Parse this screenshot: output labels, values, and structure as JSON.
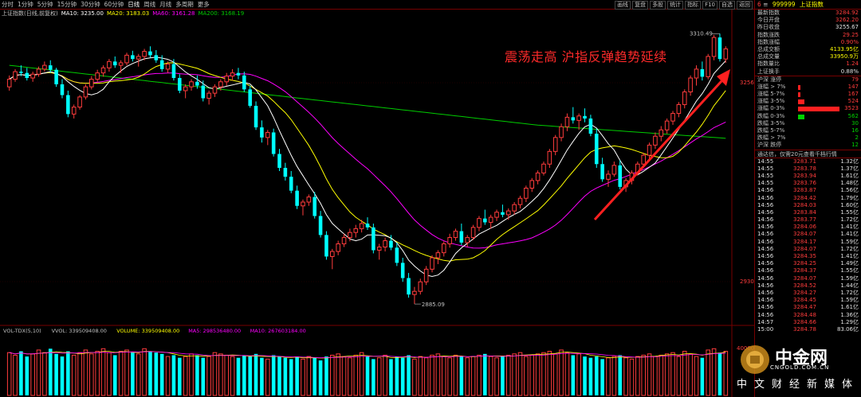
{
  "top": {
    "periods": [
      "分时",
      "1分钟",
      "5分钟",
      "15分钟",
      "30分钟",
      "60分钟",
      "日线",
      "周线",
      "月线",
      "多周期",
      "更多"
    ],
    "active": "日线",
    "tools": [
      "画线",
      "复盘",
      "多股",
      "统计",
      "指标",
      "F10",
      "自选",
      "返回"
    ]
  },
  "legend": {
    "name": "上证指数(日线,前复权)",
    "ma10": "MA10: 3235.00",
    "ma20": "MA20: 3183.03",
    "ma60": "MA60: 3161.28",
    "ma200": "MA200: 3168.19"
  },
  "colors": {
    "up": "#ff3c3c",
    "down": "#00ffff",
    "ma10": "#ffffff",
    "ma20": "#ffff00",
    "ma60": "#ff00ff",
    "ma200": "#00cc00",
    "frame": "#770000"
  },
  "headline": "震荡走高 沪指反弹趋势延续",
  "annotations": {
    "high_label": "3310.49",
    "low_label": "2885.09",
    "axis_upper": "3256",
    "axis_lower": "2930"
  },
  "chart_data": {
    "type": "candlestick",
    "price_ylim": [
      2860,
      3330
    ],
    "ohlc": [
      [
        3228,
        3246,
        3222,
        3240
      ],
      [
        3240,
        3256,
        3236,
        3252
      ],
      [
        3252,
        3262,
        3245,
        3250
      ],
      [
        3250,
        3258,
        3238,
        3242
      ],
      [
        3242,
        3252,
        3236,
        3248
      ],
      [
        3248,
        3260,
        3244,
        3256
      ],
      [
        3256,
        3268,
        3252,
        3262
      ],
      [
        3262,
        3270,
        3250,
        3255
      ],
      [
        3255,
        3258,
        3228,
        3232
      ],
      [
        3232,
        3240,
        3210,
        3215
      ],
      [
        3215,
        3222,
        3180,
        3185
      ],
      [
        3185,
        3200,
        3178,
        3196
      ],
      [
        3196,
        3215,
        3192,
        3212
      ],
      [
        3212,
        3232,
        3208,
        3228
      ],
      [
        3228,
        3245,
        3224,
        3240
      ],
      [
        3240,
        3255,
        3236,
        3250
      ],
      [
        3250,
        3262,
        3244,
        3258
      ],
      [
        3258,
        3272,
        3252,
        3268
      ],
      [
        3268,
        3276,
        3258,
        3262
      ],
      [
        3262,
        3270,
        3250,
        3266
      ],
      [
        3266,
        3282,
        3262,
        3278
      ],
      [
        3278,
        3285,
        3268,
        3272
      ],
      [
        3272,
        3280,
        3260,
        3276
      ],
      [
        3276,
        3288,
        3270,
        3284
      ],
      [
        3284,
        3292,
        3274,
        3278
      ],
      [
        3278,
        3286,
        3266,
        3270
      ],
      [
        3270,
        3278,
        3252,
        3256
      ],
      [
        3256,
        3268,
        3250,
        3264
      ],
      [
        3264,
        3272,
        3238,
        3242
      ],
      [
        3242,
        3248,
        3218,
        3222
      ],
      [
        3222,
        3232,
        3210,
        3228
      ],
      [
        3228,
        3240,
        3222,
        3236
      ],
      [
        3236,
        3246,
        3225,
        3230
      ],
      [
        3230,
        3238,
        3205,
        3210
      ],
      [
        3210,
        3222,
        3200,
        3218
      ],
      [
        3218,
        3232,
        3212,
        3228
      ],
      [
        3228,
        3240,
        3222,
        3236
      ],
      [
        3236,
        3250,
        3230,
        3245
      ],
      [
        3245,
        3256,
        3238,
        3250
      ],
      [
        3250,
        3258,
        3240,
        3246
      ],
      [
        3246,
        3252,
        3220,
        3224
      ],
      [
        3224,
        3230,
        3195,
        3198
      ],
      [
        3198,
        3205,
        3160,
        3164
      ],
      [
        3164,
        3175,
        3140,
        3148
      ],
      [
        3148,
        3160,
        3136,
        3156
      ],
      [
        3156,
        3162,
        3118,
        3122
      ],
      [
        3122,
        3130,
        3095,
        3100
      ],
      [
        3100,
        3108,
        3080,
        3086
      ],
      [
        3086,
        3095,
        3060,
        3064
      ],
      [
        3064,
        3072,
        3035,
        3040
      ],
      [
        3040,
        3050,
        3025,
        3046
      ],
      [
        3046,
        3058,
        3040,
        3054
      ],
      [
        3054,
        3062,
        3020,
        3024
      ],
      [
        3024,
        3032,
        2990,
        2994
      ],
      [
        2994,
        3000,
        2955,
        2960
      ],
      [
        2960,
        2972,
        2940,
        2968
      ],
      [
        2968,
        2985,
        2962,
        2980
      ],
      [
        2980,
        2996,
        2975,
        2990
      ],
      [
        2990,
        3004,
        2984,
        2998
      ],
      [
        2998,
        3010,
        2990,
        3004
      ],
      [
        3004,
        3018,
        2998,
        3012
      ],
      [
        3012,
        3022,
        3002,
        3006
      ],
      [
        3006,
        3012,
        2965,
        2970
      ],
      [
        2970,
        2980,
        2955,
        2975
      ],
      [
        2975,
        2990,
        2968,
        2985
      ],
      [
        2985,
        2994,
        2970,
        2974
      ],
      [
        2974,
        2982,
        2945,
        2950
      ],
      [
        2950,
        2958,
        2920,
        2926
      ],
      [
        2926,
        2934,
        2895,
        2900
      ],
      [
        2900,
        2912,
        2885,
        2905
      ],
      [
        2905,
        2925,
        2900,
        2920
      ],
      [
        2920,
        2945,
        2915,
        2940
      ],
      [
        2940,
        2962,
        2935,
        2958
      ],
      [
        2958,
        2970,
        2948,
        2966
      ],
      [
        2966,
        2984,
        2960,
        2980
      ],
      [
        2980,
        2996,
        2974,
        2990
      ],
      [
        2990,
        3004,
        2985,
        3000
      ],
      [
        3000,
        3012,
        2978,
        2982
      ],
      [
        2982,
        2994,
        2975,
        2990
      ],
      [
        2990,
        3010,
        2986,
        3006
      ],
      [
        3006,
        3024,
        3000,
        3020
      ],
      [
        3020,
        3034,
        3010,
        3014
      ],
      [
        3014,
        3026,
        3004,
        3022
      ],
      [
        3022,
        3034,
        3016,
        3030
      ],
      [
        3030,
        3042,
        3022,
        3026
      ],
      [
        3026,
        3036,
        3018,
        3032
      ],
      [
        3032,
        3046,
        3026,
        3042
      ],
      [
        3042,
        3056,
        3036,
        3052
      ],
      [
        3052,
        3072,
        3046,
        3068
      ],
      [
        3068,
        3084,
        3062,
        3080
      ],
      [
        3080,
        3096,
        3074,
        3092
      ],
      [
        3092,
        3110,
        3088,
        3106
      ],
      [
        3106,
        3130,
        3100,
        3126
      ],
      [
        3126,
        3152,
        3120,
        3148
      ],
      [
        3148,
        3170,
        3142,
        3165
      ],
      [
        3165,
        3186,
        3158,
        3180
      ],
      [
        3180,
        3196,
        3170,
        3175
      ],
      [
        3175,
        3186,
        3160,
        3182
      ],
      [
        3182,
        3194,
        3172,
        3178
      ],
      [
        3178,
        3184,
        3150,
        3154
      ],
      [
        3154,
        3162,
        3100,
        3106
      ],
      [
        3106,
        3116,
        3078,
        3082
      ],
      [
        3082,
        3096,
        3070,
        3090
      ],
      [
        3090,
        3110,
        3086,
        3104
      ],
      [
        3104,
        3112,
        3066,
        3070
      ],
      [
        3070,
        3084,
        3062,
        3080
      ],
      [
        3080,
        3096,
        3074,
        3092
      ],
      [
        3092,
        3110,
        3088,
        3106
      ],
      [
        3106,
        3124,
        3100,
        3120
      ],
      [
        3120,
        3140,
        3114,
        3136
      ],
      [
        3136,
        3156,
        3130,
        3150
      ],
      [
        3150,
        3166,
        3142,
        3160
      ],
      [
        3160,
        3178,
        3154,
        3174
      ],
      [
        3174,
        3190,
        3168,
        3186
      ],
      [
        3186,
        3204,
        3180,
        3200
      ],
      [
        3200,
        3224,
        3194,
        3220
      ],
      [
        3220,
        3246,
        3214,
        3242
      ],
      [
        3242,
        3262,
        3230,
        3256
      ],
      [
        3256,
        3268,
        3238,
        3244
      ],
      [
        3244,
        3280,
        3240,
        3276
      ],
      [
        3276,
        3310,
        3270,
        3306
      ],
      [
        3306,
        3312,
        3268,
        3272
      ],
      [
        3272,
        3292,
        3266,
        3288
      ]
    ],
    "volume_ylim": [
      0,
      460000000
    ],
    "volume": [
      330,
      310,
      340,
      300,
      320,
      350,
      330,
      360,
      320,
      300,
      340,
      310,
      330,
      350,
      320,
      340,
      360,
      330,
      310,
      340,
      350,
      330,
      320,
      360,
      340,
      330,
      320,
      300,
      310,
      290,
      300,
      320,
      310,
      290,
      300,
      330,
      320,
      310,
      300,
      290,
      310,
      300,
      320,
      290,
      280,
      310,
      300,
      290,
      280,
      300,
      280,
      300,
      290,
      270,
      300,
      310,
      320,
      300,
      290,
      310,
      330,
      300,
      280,
      290,
      310,
      280,
      300,
      290,
      310,
      280,
      300,
      290,
      310,
      320,
      300,
      290,
      310,
      300,
      290,
      300,
      310,
      320,
      300,
      290,
      300,
      310,
      320,
      330,
      300,
      310,
      320,
      330,
      340,
      320,
      350,
      330,
      310,
      320,
      300,
      290,
      300,
      280,
      290,
      300,
      310,
      290,
      280,
      300,
      310,
      320,
      300,
      310,
      320,
      330,
      300,
      340,
      320,
      300,
      290,
      350,
      360,
      330,
      340
    ],
    "vol_legend": {
      "name": "VOL-TDX(5,10)",
      "vvol": "VVOL: 339509408.00",
      "volume": "VOLUME: 339509408.00",
      "ma5": "MA5: 298536480.00",
      "ma10": "MA10: 267603184.00"
    },
    "vol_axis": {
      "upper": "40000",
      "unit": "万万"
    }
  },
  "panel": {
    "num": "6",
    "code": "999999",
    "name": "上证指数",
    "stats": [
      {
        "label": "最新指数",
        "value": "3284.92",
        "cls": "red"
      },
      {
        "label": "今日开盘",
        "value": "3262.20",
        "cls": "red"
      },
      {
        "label": "昨日收盘",
        "value": "3255.67",
        "cls": "white"
      },
      {
        "label": "指数涨跌",
        "value": "29.25",
        "cls": "red"
      },
      {
        "label": "指数涨幅",
        "value": "0.90%",
        "cls": "red"
      },
      {
        "label": "总成交额",
        "value": "4133.95亿",
        "cls": "yellow"
      },
      {
        "label": "总成交量",
        "value": "33950.9万",
        "cls": "yellow"
      },
      {
        "label": "指数量比",
        "value": "1.24",
        "cls": "red"
      },
      {
        "label": "上证换手",
        "value": "0.88%",
        "cls": "white"
      }
    ],
    "breadth": [
      {
        "label": "沪深 涨停",
        "value": "79",
        "cls": "red",
        "bar": 0
      },
      {
        "label": "涨幅 > 7%",
        "value": "147",
        "cls": "red",
        "bar": 0.01
      },
      {
        "label": "涨幅 5-7%",
        "value": "167",
        "cls": "red",
        "bar": 0.01
      },
      {
        "label": "涨幅 3-5%",
        "value": "524",
        "cls": "red",
        "bar": 0.15
      },
      {
        "label": "涨幅 0-3%",
        "value": "3523",
        "cls": "red",
        "bar": 1
      },
      {
        "label": "跌幅 0-3%",
        "value": "562",
        "cls": "green",
        "bar": 0.16
      },
      {
        "label": "跌幅 3-5%",
        "value": "30",
        "cls": "green",
        "bar": 0
      },
      {
        "label": "跌幅 5-7%",
        "value": "16",
        "cls": "green",
        "bar": 0
      },
      {
        "label": "跌幅 > 7%",
        "value": "2",
        "cls": "green",
        "bar": 0
      },
      {
        "label": "沪深 跌停",
        "value": "12",
        "cls": "green",
        "bar": 0
      }
    ],
    "notice": "通达信，仅需20元查看千档行情",
    "ticks": [
      [
        "14:55",
        "3283.71",
        "1.32亿"
      ],
      [
        "14:55",
        "3283.78",
        "1.37亿"
      ],
      [
        "14:55",
        "3283.94",
        "1.61亿"
      ],
      [
        "14:55",
        "3283.76",
        "1.48亿"
      ],
      [
        "14:56",
        "3283.87",
        "1.56亿"
      ],
      [
        "14:56",
        "3284.42",
        "1.79亿"
      ],
      [
        "14:56",
        "3284.03",
        "1.60亿"
      ],
      [
        "14:56",
        "3283.84",
        "1.55亿"
      ],
      [
        "14:56",
        "3283.77",
        "1.72亿"
      ],
      [
        "14:56",
        "3284.06",
        "1.41亿"
      ],
      [
        "14:56",
        "3284.07",
        "1.41亿"
      ],
      [
        "14:56",
        "3284.17",
        "1.59亿"
      ],
      [
        "14:56",
        "3284.07",
        "1.72亿"
      ],
      [
        "14:56",
        "3284.35",
        "1.41亿"
      ],
      [
        "14:56",
        "3284.25",
        "1.49亿"
      ],
      [
        "14:56",
        "3284.37",
        "1.55亿"
      ],
      [
        "14:56",
        "3284.07",
        "1.59亿"
      ],
      [
        "14:56",
        "3284.52",
        "1.44亿"
      ],
      [
        "14:56",
        "3284.27",
        "1.72亿"
      ],
      [
        "14:56",
        "3284.45",
        "1.59亿"
      ],
      [
        "14:56",
        "3284.47",
        "1.61亿"
      ],
      [
        "14:56",
        "3284.48",
        "1.36亿"
      ],
      [
        "14:57",
        "3284.66",
        "1.29亿"
      ],
      [
        "15:00",
        "3284.78",
        "83.06亿"
      ]
    ]
  },
  "watermark": {
    "cn": "中金网",
    "url": "CNGOLD.COM.CN",
    "sub": "中文财经新媒体"
  }
}
